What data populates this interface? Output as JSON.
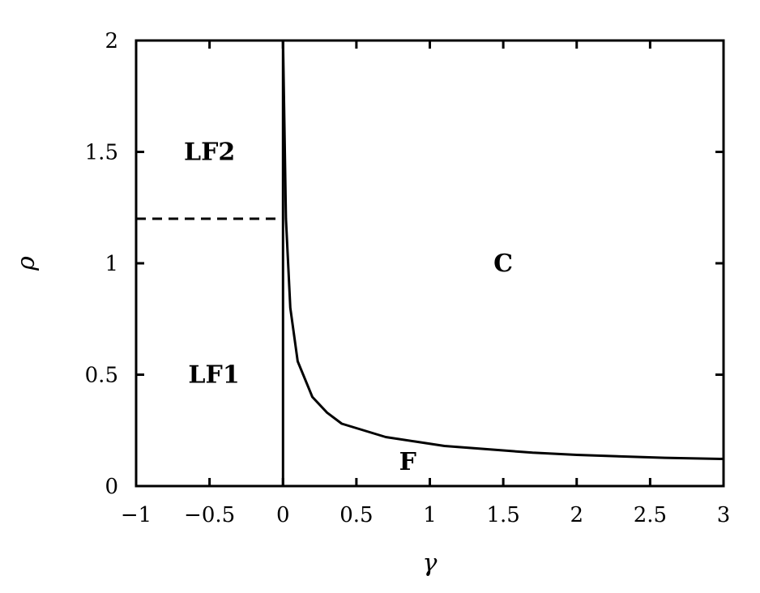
{
  "chart_data": {
    "type": "line",
    "title": "",
    "xlabel": "γ",
    "ylabel": "ρ",
    "xlim": [
      -1,
      3
    ],
    "ylim": [
      0,
      2
    ],
    "xticks": [
      {
        "value": -1,
        "label": "−1"
      },
      {
        "value": -0.5,
        "label": "−0.5"
      },
      {
        "value": 0,
        "label": "0"
      },
      {
        "value": 0.5,
        "label": "0.5"
      },
      {
        "value": 1,
        "label": "1"
      },
      {
        "value": 1.5,
        "label": "1.5"
      },
      {
        "value": 2,
        "label": "2"
      },
      {
        "value": 2.5,
        "label": "2.5"
      },
      {
        "value": 3,
        "label": "3"
      }
    ],
    "yticks": [
      {
        "value": 0,
        "label": "0"
      },
      {
        "value": 0.5,
        "label": "0.5"
      },
      {
        "value": 1,
        "label": "1"
      },
      {
        "value": 1.5,
        "label": "1.5"
      },
      {
        "value": 2,
        "label": "2"
      }
    ],
    "grid": false,
    "series": [
      {
        "style": "solid",
        "x": [
          0.0,
          0.02,
          0.05,
          0.1,
          0.2,
          0.3,
          0.4,
          0.5,
          0.7,
          0.9,
          1.1,
          1.4,
          1.7,
          2.0,
          2.3,
          2.6,
          3.0
        ],
        "y": [
          2.0,
          1.2,
          0.8,
          0.56,
          0.4,
          0.33,
          0.28,
          0.26,
          0.22,
          0.2,
          0.18,
          0.165,
          0.15,
          0.14,
          0.133,
          0.127,
          0.122
        ]
      },
      {
        "style": "solid",
        "x": [
          0,
          0
        ],
        "y": [
          0,
          2
        ]
      },
      {
        "style": "dashed",
        "x": [
          -1,
          0
        ],
        "y": [
          1.2,
          1.2
        ]
      }
    ],
    "annotations": [
      {
        "text": "LF2",
        "x": -0.5,
        "y": 1.5
      },
      {
        "text": "LF1",
        "x": -0.47,
        "y": 0.5
      },
      {
        "text": "C",
        "x": 1.5,
        "y": 1.0
      },
      {
        "text": "F",
        "x": 0.85,
        "y": 0.11
      }
    ]
  }
}
